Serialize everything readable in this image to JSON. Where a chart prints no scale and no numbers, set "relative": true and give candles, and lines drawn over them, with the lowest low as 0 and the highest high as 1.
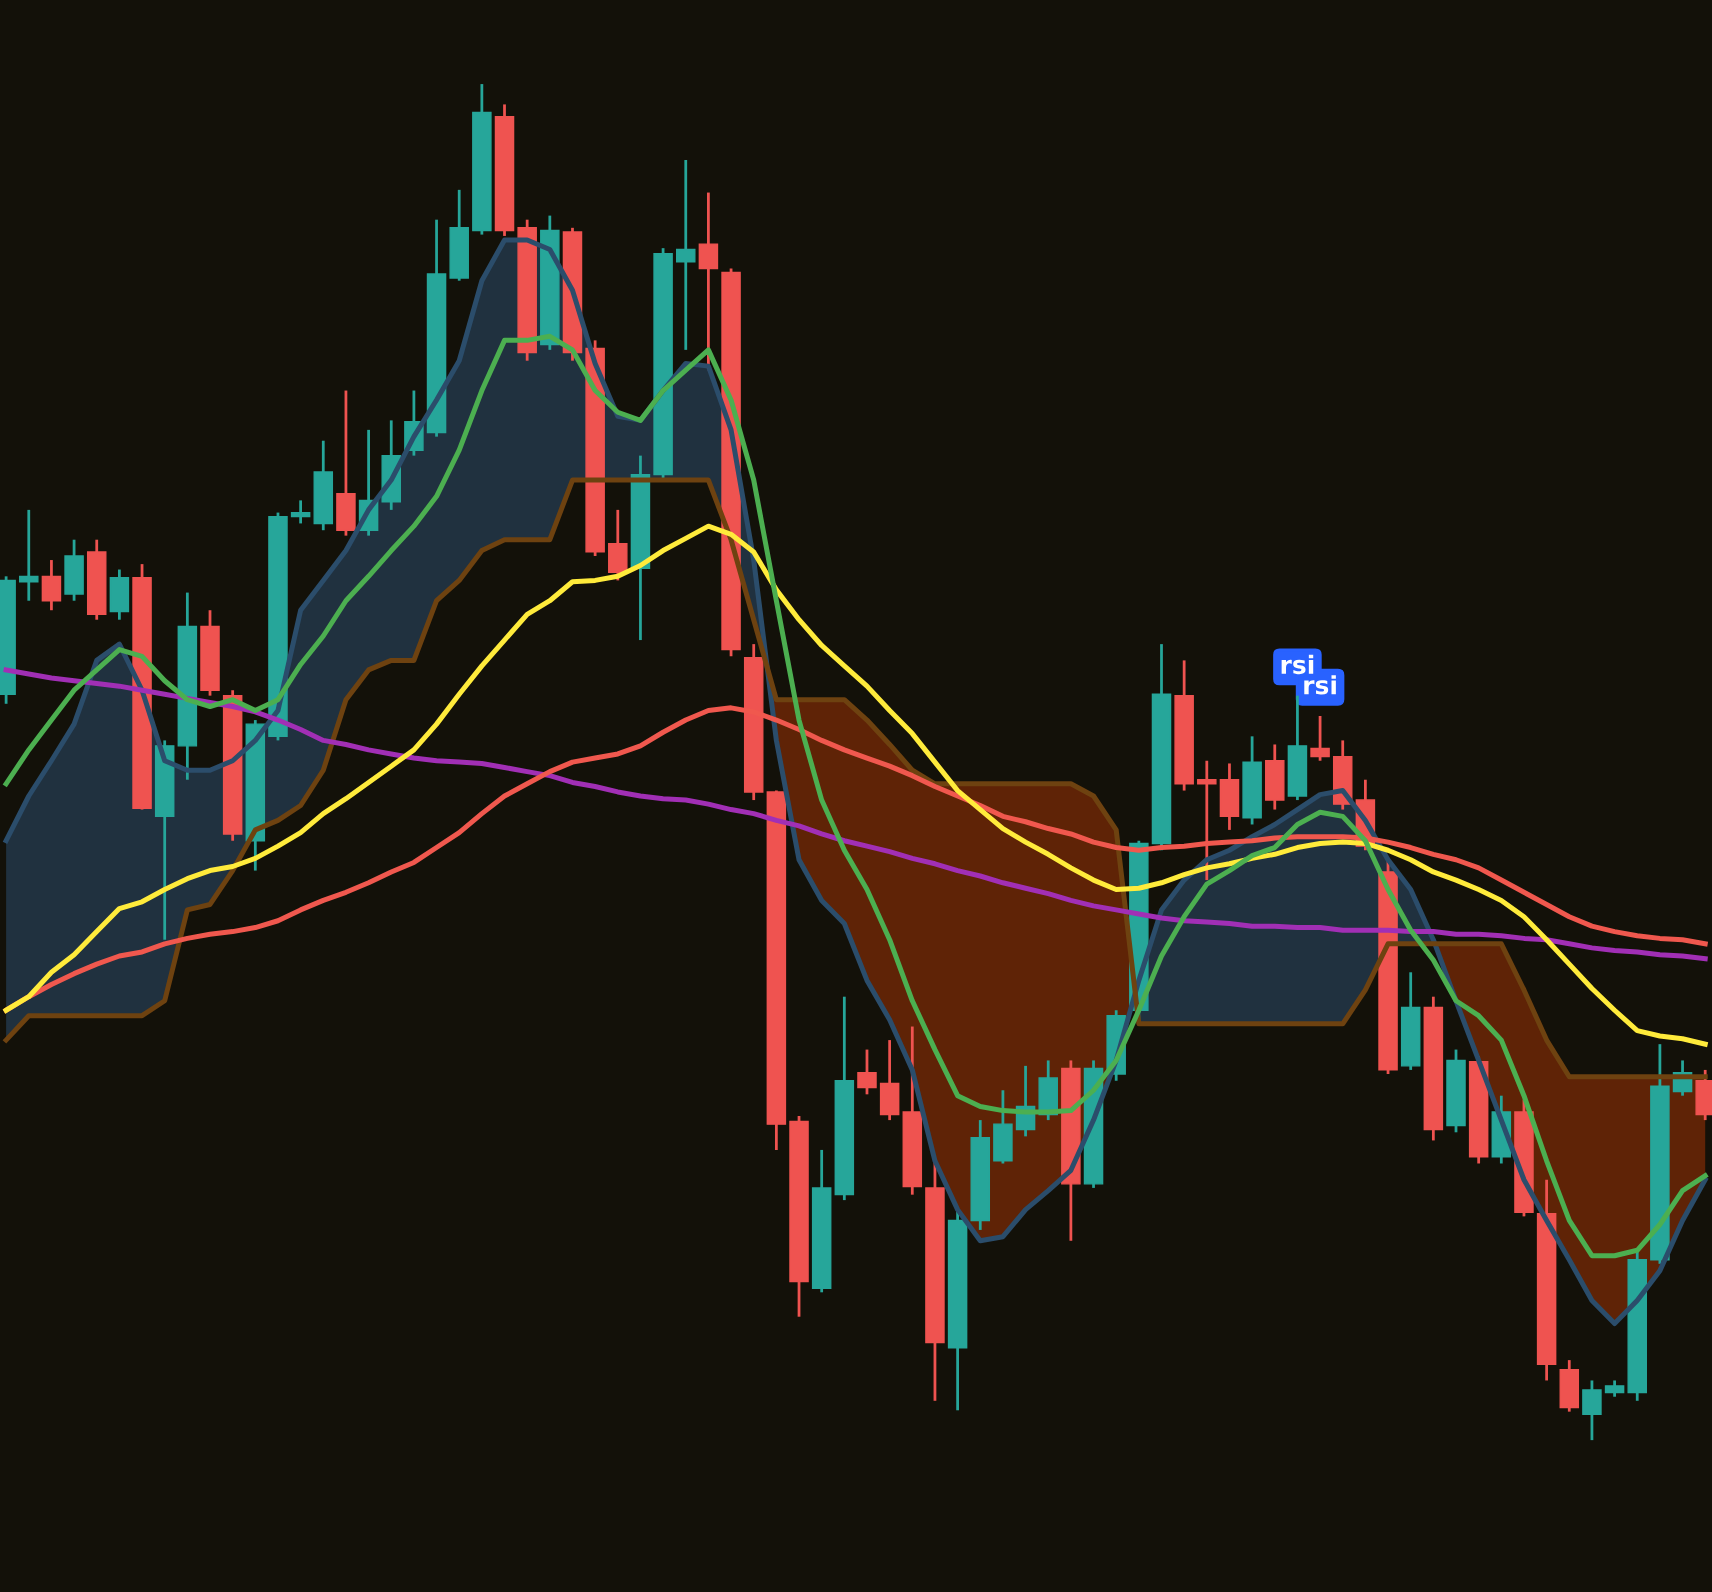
{
  "chart_data": {
    "type": "candlestick",
    "relative": true,
    "tick_labels": false,
    "categories": [
      null,
      null,
      null,
      null,
      null,
      null,
      null,
      null,
      null,
      null,
      null,
      null,
      null,
      null,
      null,
      null,
      null,
      null,
      null,
      null,
      null,
      null,
      null,
      null,
      null,
      null,
      null,
      null,
      null,
      null,
      null,
      null,
      null,
      null,
      null,
      null,
      null,
      null,
      null,
      null,
      null,
      null,
      null,
      null,
      null,
      null,
      null,
      null,
      null,
      null,
      null,
      null,
      null,
      null,
      null,
      null,
      null,
      null,
      null,
      null,
      null,
      null,
      null,
      null,
      null,
      null,
      null,
      null,
      null,
      null,
      null,
      null,
      null,
      null,
      null,
      null
    ],
    "ohlc": [
      [
        0.55,
        0.637,
        0.543,
        0.634
      ],
      [
        0.633,
        0.686,
        0.619,
        0.637
      ],
      [
        0.637,
        0.649,
        0.612,
        0.619
      ],
      [
        0.624,
        0.664,
        0.619,
        0.652
      ],
      [
        0.655,
        0.664,
        0.605,
        0.609
      ],
      [
        0.611,
        0.642,
        0.605,
        0.636
      ],
      [
        0.636,
        0.646,
        0.465,
        0.466
      ],
      [
        0.46,
        0.516,
        0.369,
        0.512
      ],
      [
        0.512,
        0.625,
        0.487,
        0.6
      ],
      [
        0.6,
        0.612,
        0.549,
        0.553
      ],
      [
        0.549,
        0.553,
        0.442,
        0.447
      ],
      [
        0.442,
        0.531,
        0.42,
        0.528
      ],
      [
        0.519,
        0.684,
        0.516,
        0.681
      ],
      [
        0.681,
        0.693,
        0.676,
        0.684
      ],
      [
        0.676,
        0.737,
        0.671,
        0.714
      ],
      [
        0.698,
        0.774,
        0.667,
        0.671
      ],
      [
        0.671,
        0.745,
        0.667,
        0.693
      ],
      [
        0.692,
        0.752,
        0.686,
        0.726
      ],
      [
        0.73,
        0.774,
        0.726,
        0.751
      ],
      [
        0.743,
        0.9,
        0.74,
        0.86
      ],
      [
        0.857,
        0.922,
        0.855,
        0.894
      ],
      [
        0.892,
        1.0,
        0.889,
        0.979
      ],
      [
        0.976,
        0.985,
        0.888,
        0.892
      ],
      [
        0.894,
        0.9,
        0.796,
        0.802
      ],
      [
        0.808,
        0.903,
        0.804,
        0.892
      ],
      [
        0.891,
        0.894,
        0.796,
        0.802
      ],
      [
        0.805,
        0.811,
        0.652,
        0.655
      ],
      [
        0.661,
        0.686,
        0.634,
        0.64
      ],
      [
        0.643,
        0.726,
        0.59,
        0.712
      ],
      [
        0.712,
        0.879,
        0.708,
        0.875
      ],
      [
        0.869,
        0.944,
        0.804,
        0.878
      ],
      [
        0.882,
        0.92,
        0.789,
        0.864
      ],
      [
        0.861,
        0.864,
        0.578,
        0.583
      ],
      [
        0.577,
        0.587,
        0.472,
        0.478
      ],
      [
        0.478,
        0.479,
        0.214,
        0.233
      ],
      [
        0.235,
        0.239,
        0.091,
        0.117
      ],
      [
        0.112,
        0.214,
        0.109,
        0.186
      ],
      [
        0.181,
        0.327,
        0.177,
        0.265
      ],
      [
        0.271,
        0.288,
        0.255,
        0.26
      ],
      [
        0.263,
        0.295,
        0.236,
        0.24
      ],
      [
        0.242,
        0.305,
        0.181,
        0.187
      ],
      [
        0.186,
        0.206,
        0.029,
        0.072
      ],
      [
        0.068,
        0.17,
        0.022,
        0.162
      ],
      [
        0.162,
        0.236,
        0.155,
        0.223
      ],
      [
        0.206,
        0.258,
        0.204,
        0.233
      ],
      [
        0.229,
        0.276,
        0.224,
        0.246
      ],
      [
        0.24,
        0.28,
        0.236,
        0.267
      ],
      [
        0.274,
        0.28,
        0.147,
        0.189
      ],
      [
        0.189,
        0.28,
        0.186,
        0.274
      ],
      [
        0.27,
        0.317,
        0.265,
        0.313
      ],
      [
        0.317,
        0.442,
        0.31,
        0.44
      ],
      [
        0.44,
        0.587,
        0.435,
        0.55
      ],
      [
        0.549,
        0.575,
        0.479,
        0.484
      ],
      [
        0.487,
        0.501,
        0.413,
        0.484
      ],
      [
        0.487,
        0.499,
        0.45,
        0.46
      ],
      [
        0.459,
        0.519,
        0.454,
        0.5
      ],
      [
        0.501,
        0.513,
        0.465,
        0.472
      ],
      [
        0.475,
        0.549,
        0.472,
        0.512
      ],
      [
        0.51,
        0.534,
        0.501,
        0.504
      ],
      [
        0.504,
        0.516,
        0.465,
        0.469
      ],
      [
        0.472,
        0.487,
        0.435,
        0.438
      ],
      [
        0.419,
        0.428,
        0.27,
        0.273
      ],
      [
        0.276,
        0.345,
        0.273,
        0.319
      ],
      [
        0.319,
        0.327,
        0.221,
        0.229
      ],
      [
        0.232,
        0.288,
        0.227,
        0.28
      ],
      [
        0.279,
        0.283,
        0.204,
        0.209
      ],
      [
        0.209,
        0.254,
        0.204,
        0.242
      ],
      [
        0.242,
        0.251,
        0.165,
        0.168
      ],
      [
        0.167,
        0.192,
        0.044,
        0.056
      ],
      [
        0.052,
        0.059,
        0.021,
        0.024
      ],
      [
        0.019,
        0.044,
        0.0,
        0.037
      ],
      [
        0.035,
        0.044,
        0.032,
        0.04
      ],
      [
        0.035,
        0.14,
        0.029,
        0.133
      ],
      [
        0.133,
        0.292,
        0.13,
        0.261
      ],
      [
        0.257,
        0.28,
        0.254,
        0.271
      ],
      [
        0.265,
        0.273,
        0.236,
        0.24
      ]
    ],
    "colors": [
      "#26a69a",
      "#26a69a",
      "#ef5350",
      "#26a69a",
      "#ef5350",
      "#26a69a",
      "#ef5350",
      "#26a69a",
      "#26a69a",
      "#ef5350",
      "#ef5350",
      "#26a69a",
      "#26a69a",
      "#26a69a",
      "#26a69a",
      "#ef5350",
      "#26a69a",
      "#26a69a",
      "#26a69a",
      "#26a69a",
      "#26a69a",
      "#26a69a",
      "#ef5350",
      "#ef5350",
      "#26a69a",
      "#ef5350",
      "#ef5350",
      "#ef5350",
      "#26a69a",
      "#26a69a",
      "#26a69a",
      "#ef5350",
      "#ef5350",
      "#ef5350",
      "#ef5350",
      "#ef5350",
      "#26a69a",
      "#26a69a",
      "#ef5350",
      "#ef5350",
      "#ef5350",
      "#ef5350",
      "#26a69a",
      "#26a69a",
      "#26a69a",
      "#26a69a",
      "#26a69a",
      "#ef5350",
      "#26a69a",
      "#26a69a",
      "#26a69a",
      "#26a69a",
      "#ef5350",
      "#ef5350",
      "#ef5350",
      "#26a69a",
      "#ef5350",
      "#26a69a",
      "#ef5350",
      "#ef5350",
      "#ef5350",
      "#ef5350",
      "#26a69a",
      "#ef5350",
      "#26a69a",
      "#ef5350",
      "#26a69a",
      "#ef5350",
      "#ef5350",
      "#ef5350",
      "#26a69a",
      "#26a69a",
      "#26a69a",
      "#26a69a",
      "#26a69a",
      "#ef5350"
    ],
    "series": [
      {
        "type": "line",
        "color": "#2b4d6b",
        "values": [
          0.442,
          0.475,
          0.501,
          0.528,
          0.575,
          0.587,
          0.553,
          0.501,
          0.494,
          0.494,
          0.501,
          0.516,
          0.538,
          0.612,
          0.634,
          0.656,
          0.686,
          0.708,
          0.74,
          0.767,
          0.796,
          0.855,
          0.885,
          0.885,
          0.878,
          0.848,
          0.794,
          0.755,
          0.752,
          0.774,
          0.794,
          0.792,
          0.745,
          0.649,
          0.516,
          0.428,
          0.398,
          0.381,
          0.339,
          0.31,
          0.273,
          0.206,
          0.17,
          0.147,
          0.15,
          0.17,
          0.184,
          0.199,
          0.236,
          0.28,
          0.339,
          0.391,
          0.413,
          0.428,
          0.435,
          0.445,
          0.454,
          0.465,
          0.476,
          0.479,
          0.457,
          0.428,
          0.406,
          0.369,
          0.324,
          0.28,
          0.236,
          0.192,
          0.162,
          0.133,
          0.103,
          0.086,
          0.103,
          0.125,
          0.162,
          0.192
        ]
      },
      {
        "type": "line",
        "color": "#6e4210",
        "values": [
          0.295,
          0.313,
          0.313,
          0.313,
          0.313,
          0.313,
          0.313,
          0.324,
          0.391,
          0.395,
          0.42,
          0.45,
          0.457,
          0.468,
          0.494,
          0.546,
          0.568,
          0.575,
          0.575,
          0.619,
          0.634,
          0.656,
          0.664,
          0.664,
          0.664,
          0.708,
          0.708,
          0.708,
          0.708,
          0.708,
          0.708,
          0.708,
          0.664,
          0.605,
          0.546,
          0.546,
          0.546,
          0.546,
          0.531,
          0.513,
          0.494,
          0.484,
          0.484,
          0.484,
          0.484,
          0.484,
          0.484,
          0.484,
          0.475,
          0.45,
          0.307,
          0.307,
          0.307,
          0.307,
          0.307,
          0.307,
          0.307,
          0.307,
          0.307,
          0.307,
          0.332,
          0.366,
          0.366,
          0.366,
          0.366,
          0.366,
          0.366,
          0.332,
          0.295,
          0.268,
          0.268,
          0.268,
          0.268,
          0.268,
          0.268,
          0.268
        ]
      },
      {
        "type": "line",
        "color": "#a12fb5",
        "values": [
          0.568,
          0.565,
          0.562,
          0.56,
          0.558,
          0.556,
          0.553,
          0.55,
          0.547,
          0.544,
          0.541,
          0.537,
          0.531,
          0.524,
          0.516,
          0.513,
          0.509,
          0.506,
          0.503,
          0.501,
          0.5,
          0.499,
          0.496,
          0.493,
          0.49,
          0.485,
          0.482,
          0.478,
          0.475,
          0.473,
          0.472,
          0.469,
          0.465,
          0.462,
          0.457,
          0.453,
          0.447,
          0.442,
          0.438,
          0.434,
          0.429,
          0.425,
          0.42,
          0.416,
          0.411,
          0.407,
          0.403,
          0.398,
          0.394,
          0.391,
          0.388,
          0.385,
          0.383,
          0.382,
          0.381,
          0.379,
          0.379,
          0.378,
          0.378,
          0.376,
          0.376,
          0.376,
          0.375,
          0.375,
          0.373,
          0.373,
          0.372,
          0.37,
          0.369,
          0.366,
          0.363,
          0.361,
          0.36,
          0.358,
          0.357,
          0.355
        ]
      },
      {
        "type": "line",
        "color": "#f0584e",
        "values": [
          0.317,
          0.327,
          0.336,
          0.344,
          0.351,
          0.357,
          0.36,
          0.366,
          0.37,
          0.373,
          0.375,
          0.378,
          0.383,
          0.391,
          0.398,
          0.404,
          0.411,
          0.419,
          0.426,
          0.437,
          0.448,
          0.462,
          0.475,
          0.484,
          0.493,
          0.5,
          0.503,
          0.506,
          0.512,
          0.522,
          0.531,
          0.538,
          0.54,
          0.537,
          0.531,
          0.524,
          0.516,
          0.509,
          0.503,
          0.497,
          0.49,
          0.482,
          0.475,
          0.468,
          0.46,
          0.456,
          0.451,
          0.447,
          0.441,
          0.437,
          0.435,
          0.437,
          0.438,
          0.44,
          0.441,
          0.442,
          0.444,
          0.445,
          0.445,
          0.445,
          0.444,
          0.441,
          0.437,
          0.432,
          0.428,
          0.422,
          0.413,
          0.404,
          0.395,
          0.386,
          0.379,
          0.375,
          0.372,
          0.37,
          0.369,
          0.366
        ]
      },
      {
        "type": "line",
        "color": "#ffeb3b",
        "values": [
          0.317,
          0.327,
          0.345,
          0.358,
          0.375,
          0.392,
          0.397,
          0.406,
          0.414,
          0.42,
          0.423,
          0.429,
          0.438,
          0.448,
          0.462,
          0.473,
          0.485,
          0.497,
          0.509,
          0.528,
          0.55,
          0.571,
          0.59,
          0.609,
          0.619,
          0.633,
          0.634,
          0.637,
          0.645,
          0.656,
          0.665,
          0.674,
          0.668,
          0.655,
          0.627,
          0.605,
          0.586,
          0.571,
          0.556,
          0.538,
          0.521,
          0.5,
          0.479,
          0.465,
          0.451,
          0.441,
          0.432,
          0.422,
          0.413,
          0.406,
          0.407,
          0.411,
          0.417,
          0.422,
          0.425,
          0.429,
          0.432,
          0.437,
          0.44,
          0.441,
          0.44,
          0.435,
          0.428,
          0.419,
          0.413,
          0.406,
          0.398,
          0.386,
          0.369,
          0.351,
          0.333,
          0.317,
          0.302,
          0.298,
          0.296,
          0.292
        ]
      },
      {
        "type": "line",
        "color": "#4caf50",
        "values": [
          0.484,
          0.509,
          0.531,
          0.553,
          0.568,
          0.583,
          0.578,
          0.56,
          0.546,
          0.541,
          0.546,
          0.538,
          0.546,
          0.572,
          0.593,
          0.619,
          0.637,
          0.656,
          0.674,
          0.696,
          0.73,
          0.774,
          0.811,
          0.811,
          0.814,
          0.804,
          0.774,
          0.758,
          0.752,
          0.774,
          0.789,
          0.804,
          0.767,
          0.708,
          0.619,
          0.531,
          0.472,
          0.435,
          0.406,
          0.369,
          0.324,
          0.288,
          0.254,
          0.246,
          0.243,
          0.242,
          0.242,
          0.243,
          0.258,
          0.28,
          0.317,
          0.357,
          0.386,
          0.41,
          0.42,
          0.431,
          0.437,
          0.454,
          0.463,
          0.46,
          0.442,
          0.406,
          0.376,
          0.354,
          0.324,
          0.313,
          0.295,
          0.254,
          0.206,
          0.162,
          0.136,
          0.136,
          0.14,
          0.159,
          0.184,
          0.195
        ]
      }
    ],
    "annotations": [
      {
        "text": "rsi",
        "y": 0.549
      },
      {
        "text": "rsi",
        "y": 0.534
      }
    ]
  }
}
